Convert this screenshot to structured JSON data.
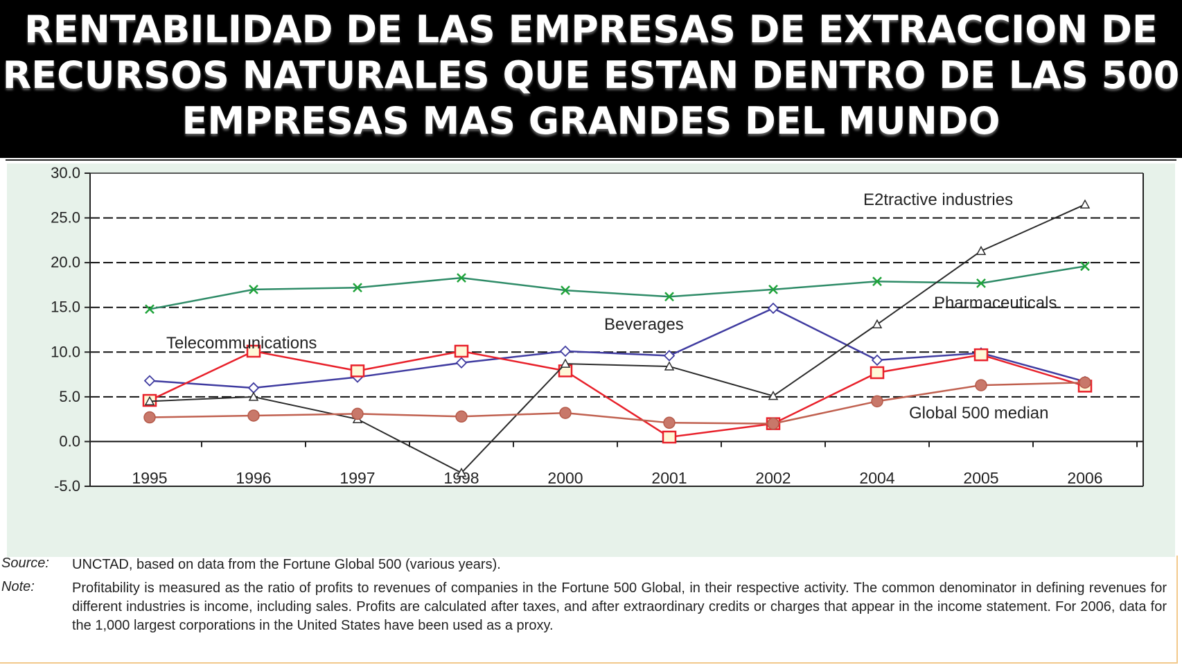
{
  "page": {
    "title": "RENTABILIDAD DE LAS EMPRESAS DE EXTRACCION DE RECURSOS NATURALES QUE ESTAN DENTRO DE LAS 500 EMPRESAS MAS GRANDES DEL MUNDO"
  },
  "chart_data": {
    "type": "line",
    "categories": [
      "1995",
      "1996",
      "1997",
      "1998",
      "2000",
      "2001",
      "2002",
      "2004",
      "2005",
      "2006"
    ],
    "ylim": [
      -5.0,
      30.0
    ],
    "yticks": [
      "30.0",
      "25.0",
      "20.0",
      "15.0",
      "10.0",
      "5.0",
      "0.0",
      "-5.0"
    ],
    "grid": "horizontal dashed",
    "series": [
      {
        "name": "Pharmaceuticals",
        "marker": "x",
        "color": "#2e8b67",
        "values": [
          14.8,
          17.0,
          17.2,
          18.3,
          16.9,
          16.2,
          17.0,
          17.9,
          17.7,
          19.6
        ]
      },
      {
        "name": "Beverages",
        "marker": "diamond",
        "color": "#3f3ba0",
        "values": [
          6.8,
          6.0,
          7.2,
          8.8,
          10.1,
          9.6,
          14.9,
          9.1,
          9.9,
          6.7
        ]
      },
      {
        "name": "Telecommunications",
        "marker": "square",
        "color": "#e8202a",
        "values": [
          4.6,
          10.1,
          7.9,
          10.1,
          7.9,
          0.5,
          2.0,
          7.7,
          9.7,
          6.2
        ]
      },
      {
        "name": "E2tractive industries",
        "marker": "triangle",
        "color": "#2a2a2a",
        "values": [
          4.5,
          5.0,
          2.5,
          -3.5,
          8.7,
          8.4,
          5.1,
          13.1,
          21.3,
          26.5
        ]
      },
      {
        "name": "Global 500 median",
        "marker": "circle",
        "color": "#c0604f",
        "values": [
          2.7,
          2.9,
          3.1,
          2.8,
          3.2,
          2.1,
          2.0,
          4.5,
          6.3,
          6.6
        ]
      }
    ]
  },
  "notes": {
    "source_label": "Source:",
    "source_text": "UNCTAD, based on data from the Fortune Global 500 (various years).",
    "note_label": "Note:",
    "note_text": "Profitability is measured as the ratio of profits to revenues of companies in the Fortune 500 Global, in their respective activity. The common denominator in defining revenues for different industries is income, including sales. Profits are calculated after taxes, and after extraordinary credits or charges that appear in the income statement. For 2006, data for the 1,000 largest corporations in the United States have been used as a proxy."
  }
}
